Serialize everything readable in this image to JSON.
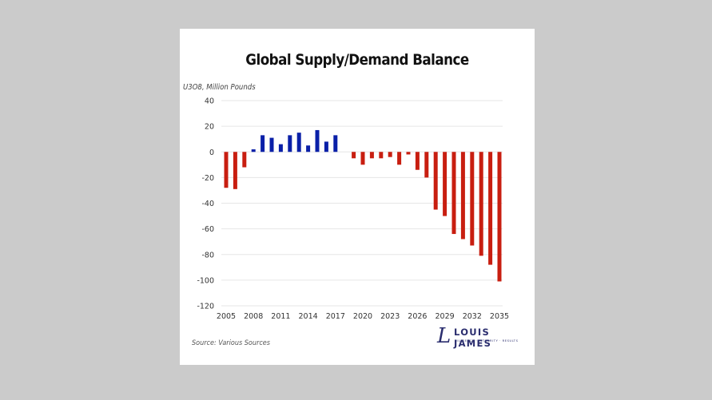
{
  "chart_data": {
    "type": "bar",
    "title": "Global Supply/Demand Balance",
    "ylabel": "U3O8, Million Pounds",
    "xlabel": "",
    "ylim": [
      -120,
      40
    ],
    "yticks": [
      40,
      20,
      0,
      -20,
      -40,
      -60,
      -80,
      -100,
      -120
    ],
    "ytick_labels": [
      "40",
      "20",
      "0",
      "-20",
      "-40",
      "-60",
      "-80",
      "-100",
      "-120"
    ],
    "xtick_labels": [
      "2005",
      "2008",
      "2011",
      "2014",
      "2017",
      "2020",
      "2023",
      "2026",
      "2029",
      "2032",
      "2035"
    ],
    "grid": true,
    "legend": "none",
    "categories": [
      2005,
      2006,
      2007,
      2008,
      2009,
      2010,
      2011,
      2012,
      2013,
      2014,
      2015,
      2016,
      2017,
      2018,
      2019,
      2020,
      2021,
      2022,
      2023,
      2024,
      2025,
      2026,
      2027,
      2028,
      2029,
      2030,
      2031,
      2032,
      2033,
      2034,
      2035
    ],
    "values": [
      -28,
      -29,
      -12,
      2,
      13,
      11,
      6,
      13,
      15,
      5,
      17,
      8,
      13,
      0,
      -5,
      -10,
      -5,
      -5,
      -4,
      -10,
      -2,
      -14,
      -20,
      -45,
      -50,
      -64,
      -68,
      -73,
      -81,
      -88,
      -101
    ],
    "colors": {
      "positive": "#0a20a8",
      "negative": "#c81e10"
    }
  },
  "source": "Source: Various Sources",
  "logo": {
    "mark": "L",
    "name": "LOUIS JAMES",
    "tagline": "DILIGENCE  ·  INTEGRITY  ·  RESULTS"
  }
}
